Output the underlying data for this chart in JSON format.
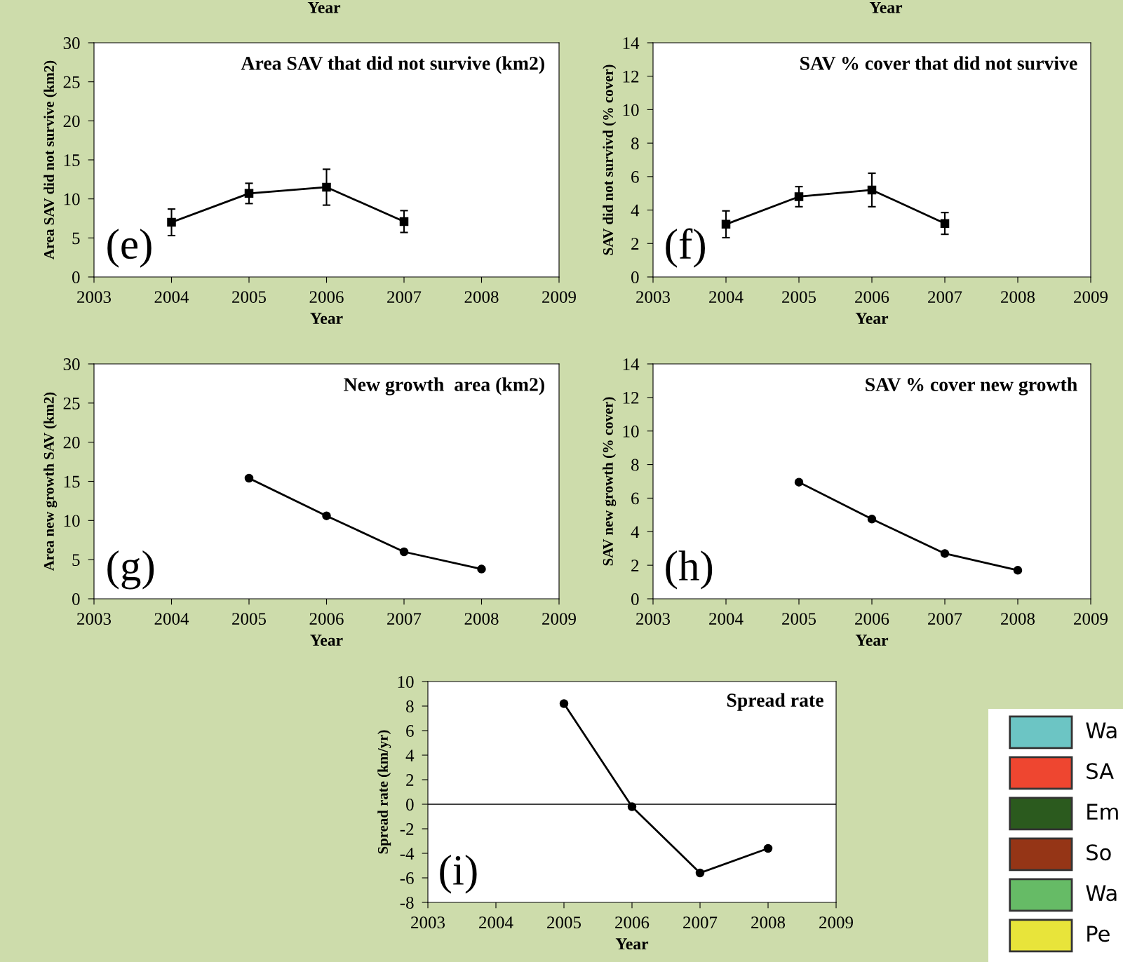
{
  "chart_data": [
    {
      "type": "line",
      "title": "Area SAV that did not survive (km2)",
      "xlabel": "Year",
      "ylabel": "Area SAV did not survive (km2)",
      "annotations": [
        "(e)"
      ],
      "x": [
        2004,
        2005,
        2006,
        2007
      ],
      "series": [
        {
          "color": "#000000",
          "values": [
            7.0,
            10.7,
            11.5,
            7.1
          ],
          "errors": [
            1.7,
            1.3,
            2.3,
            1.4
          ]
        }
      ],
      "xlim": [
        2003,
        2009
      ],
      "xticks": [
        2003,
        2004,
        2005,
        2006,
        2007,
        2008,
        2009
      ],
      "ylim": [
        0,
        30
      ],
      "yticks": [
        0,
        5,
        10,
        15,
        20,
        25,
        30
      ],
      "marker": "square",
      "grid": false,
      "legend": false
    },
    {
      "type": "line",
      "title": "SAV % cover that did not survive",
      "xlabel": "Year",
      "ylabel": "SAV did not survivd (% cover)",
      "annotations": [
        "(f)"
      ],
      "x": [
        2004,
        2005,
        2006,
        2007
      ],
      "series": [
        {
          "color": "#000000",
          "values": [
            3.15,
            4.8,
            5.2,
            3.2
          ],
          "errors": [
            0.8,
            0.6,
            1.0,
            0.65
          ]
        }
      ],
      "xlim": [
        2003,
        2009
      ],
      "xticks": [
        2003,
        2004,
        2005,
        2006,
        2007,
        2008,
        2009
      ],
      "ylim": [
        0,
        14
      ],
      "yticks": [
        0,
        2,
        4,
        6,
        8,
        10,
        12,
        14
      ],
      "marker": "square",
      "grid": false,
      "legend": false
    },
    {
      "type": "line",
      "title": "New growth  area (km2)",
      "xlabel": "Year",
      "ylabel": "Area new growth SAV (km2)",
      "annotations": [
        "(g)"
      ],
      "x": [
        2005,
        2006,
        2007,
        2008
      ],
      "series": [
        {
          "color": "#000000",
          "values": [
            15.4,
            10.6,
            6.0,
            3.8
          ]
        }
      ],
      "xlim": [
        2003,
        2009
      ],
      "xticks": [
        2003,
        2004,
        2005,
        2006,
        2007,
        2008,
        2009
      ],
      "ylim": [
        0,
        30
      ],
      "yticks": [
        0,
        5,
        10,
        15,
        20,
        25,
        30
      ],
      "marker": "circle",
      "grid": false,
      "legend": false
    },
    {
      "type": "line",
      "title": "SAV % cover new growth",
      "xlabel": "Year",
      "ylabel": "SAV new growth (% cover)",
      "annotations": [
        "(h)"
      ],
      "x": [
        2005,
        2006,
        2007,
        2008
      ],
      "series": [
        {
          "color": "#000000",
          "values": [
            6.95,
            4.75,
            2.7,
            1.7
          ]
        }
      ],
      "xlim": [
        2003,
        2009
      ],
      "xticks": [
        2003,
        2004,
        2005,
        2006,
        2007,
        2008,
        2009
      ],
      "ylim": [
        0,
        14
      ],
      "yticks": [
        0,
        2,
        4,
        6,
        8,
        10,
        12,
        14
      ],
      "marker": "circle",
      "grid": false,
      "legend": false
    },
    {
      "type": "line",
      "title": "Spread rate",
      "xlabel": "Year",
      "ylabel": "Spread rate (km/yr)",
      "annotations": [
        "(i)"
      ],
      "x": [
        2005,
        2006,
        2007,
        2008
      ],
      "series": [
        {
          "color": "#000000",
          "values": [
            8.2,
            -0.2,
            -5.6,
            -3.6
          ]
        }
      ],
      "xlim": [
        2003,
        2009
      ],
      "xticks": [
        2003,
        2004,
        2005,
        2006,
        2007,
        2008,
        2009
      ],
      "ylim": [
        -8,
        10
      ],
      "yticks": [
        -8,
        -6,
        -4,
        -2,
        0,
        2,
        4,
        6,
        8,
        10
      ],
      "ref_lines": [
        {
          "axis": "y",
          "value": 0,
          "color": "#000000"
        }
      ],
      "marker": "circle",
      "grid": false,
      "legend": false
    },
    {
      "type": "other",
      "categories": [
        "Wa",
        "SA",
        "Em",
        "So",
        "Wa",
        "Pe"
      ],
      "colors": [
        "#6cc5c4",
        "#ee4630",
        "#2b5a1e",
        "#953516",
        "#66bb66",
        "#e8e43a"
      ]
    },
    {
      "type": "other",
      "annotations": [
        "Year",
        "Year"
      ]
    }
  ]
}
